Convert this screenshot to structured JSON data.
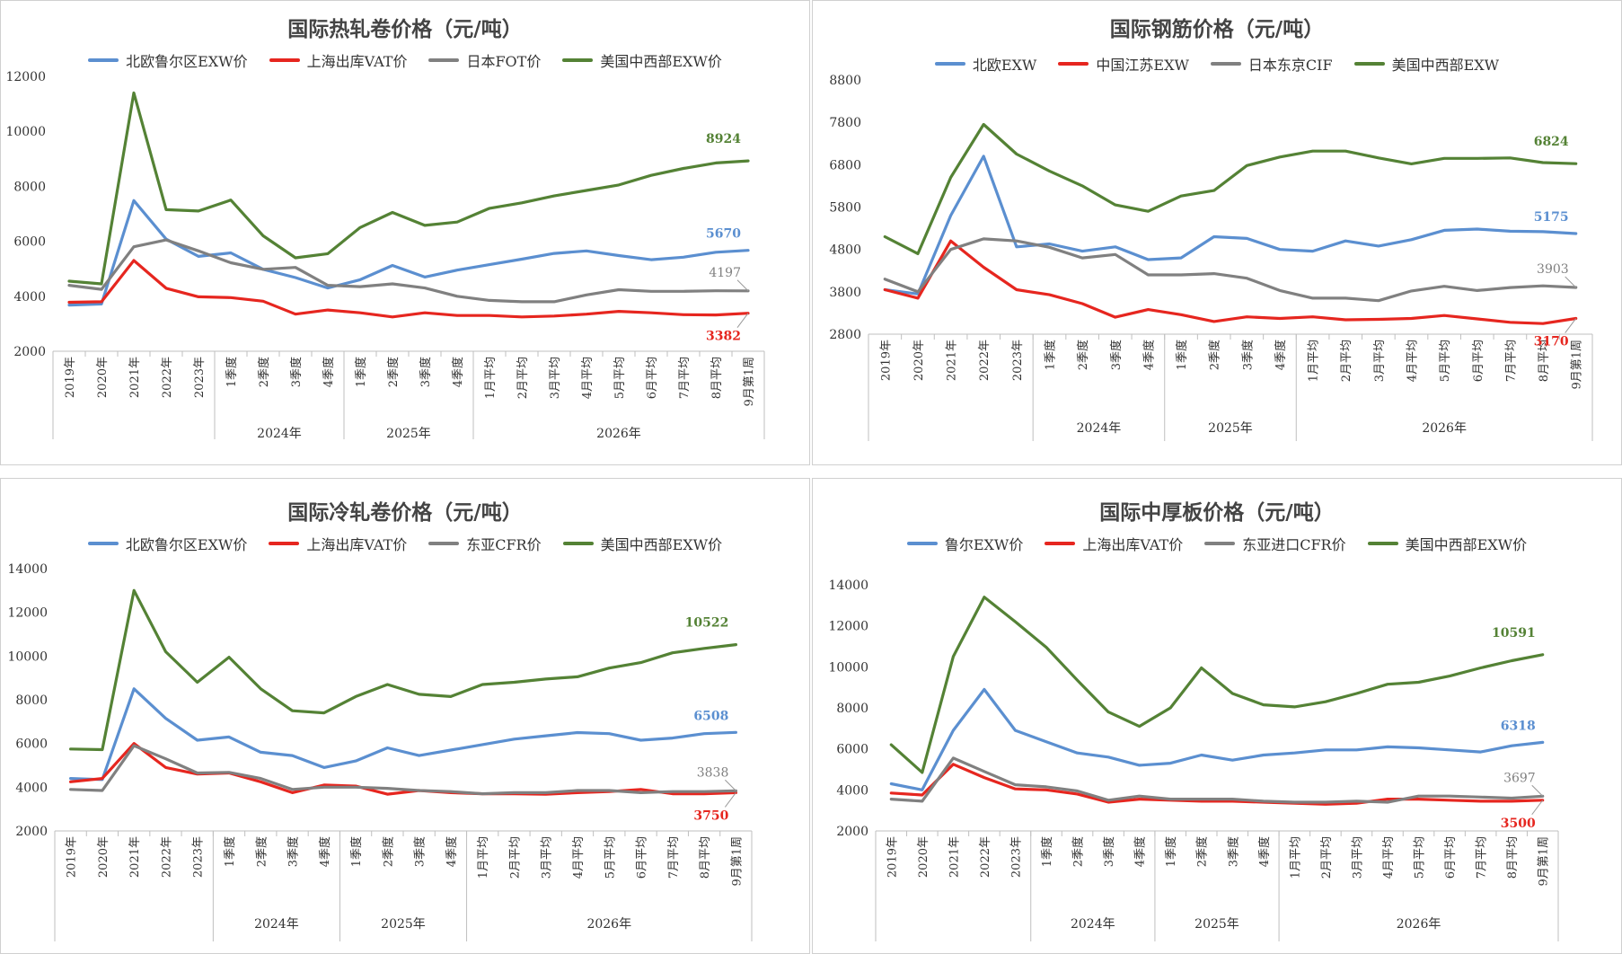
{
  "chart_data": [
    {
      "type": "line",
      "title": "国际热轧卷价格（元/吨）",
      "categories": [
        "2019年",
        "2020年",
        "2021年",
        "2022年",
        "2023年",
        "1季度",
        "2季度",
        "3季度",
        "4季度",
        "1季度",
        "2季度",
        "3季度",
        "4季度",
        "1月平均",
        "2月平均",
        "3月平均",
        "4月平均",
        "5月平均",
        "6月平均",
        "7月平均",
        "8月平均",
        "9月第1周"
      ],
      "groups": [
        {
          "label": "2024年",
          "span": [
            5,
            8
          ]
        },
        {
          "label": "2025年",
          "span": [
            9,
            12
          ]
        },
        {
          "label": "2026年",
          "span": [
            13,
            21
          ]
        }
      ],
      "ylim": [
        2000,
        12000
      ],
      "yticks": [
        2000,
        4000,
        6000,
        8000,
        10000,
        12000
      ],
      "series": [
        {
          "name": "北欧鲁尔区EXW价",
          "color": "#5b8fd0",
          "values": [
            3680,
            3720,
            7480,
            6080,
            5450,
            5580,
            4980,
            4680,
            4300,
            4600,
            5120,
            4700,
            4950,
            5150,
            5350,
            5560,
            5650,
            5480,
            5330,
            5420,
            5600,
            5670
          ],
          "end_label": "5670"
        },
        {
          "name": "上海出库VAT价",
          "color": "#e6261f",
          "values": [
            3780,
            3800,
            5300,
            4290,
            3980,
            3950,
            3820,
            3350,
            3500,
            3400,
            3250,
            3400,
            3300,
            3300,
            3250,
            3280,
            3350,
            3450,
            3400,
            3330,
            3320,
            3382
          ],
          "end_label": "3382"
        },
        {
          "name": "日本FOT价",
          "color": "#808080",
          "values": [
            4400,
            4250,
            5800,
            6050,
            5650,
            5220,
            4980,
            5050,
            4400,
            4350,
            4450,
            4300,
            4000,
            3850,
            3800,
            3800,
            4050,
            4240,
            4180,
            4180,
            4200,
            4197
          ],
          "end_label": "4197"
        },
        {
          "name": "美国中西部EXW价",
          "color": "#548235",
          "values": [
            4550,
            4450,
            11400,
            7150,
            7100,
            7500,
            6200,
            5400,
            5550,
            6500,
            7050,
            6580,
            6700,
            7200,
            7400,
            7650,
            7850,
            8050,
            8400,
            8650,
            8850,
            8924
          ],
          "end_label": "8924"
        }
      ]
    },
    {
      "type": "line",
      "title": "国际钢筋价格（元/吨）",
      "categories": [
        "2019年",
        "2020年",
        "2021年",
        "2022年",
        "2023年",
        "1季度",
        "2季度",
        "3季度",
        "4季度",
        "1季度",
        "2季度",
        "3季度",
        "4季度",
        "1月平均",
        "2月平均",
        "3月平均",
        "4月平均",
        "5月平均",
        "6月平均",
        "7月平均",
        "8月平均",
        "9月第1周"
      ],
      "groups": [
        {
          "label": "2024年",
          "span": [
            5,
            8
          ]
        },
        {
          "label": "2025年",
          "span": [
            9,
            12
          ]
        },
        {
          "label": "2026年",
          "span": [
            13,
            21
          ]
        }
      ],
      "ylim": [
        2800,
        8800
      ],
      "yticks": [
        2800,
        3800,
        4800,
        5800,
        6800,
        7800,
        8800
      ],
      "series": [
        {
          "name": "北欧EXW",
          "color": "#5b8fd0",
          "values": [
            3850,
            3750,
            5600,
            7000,
            4860,
            4930,
            4760,
            4860,
            4560,
            4600,
            5100,
            5060,
            4800,
            4760,
            5000,
            4880,
            5030,
            5250,
            5280,
            5230,
            5220,
            5175
          ],
          "end_label": "5175"
        },
        {
          "name": "中国江苏EXW",
          "color": "#e6261f",
          "values": [
            3850,
            3650,
            5000,
            4380,
            3850,
            3730,
            3520,
            3200,
            3380,
            3260,
            3100,
            3210,
            3170,
            3210,
            3140,
            3150,
            3170,
            3240,
            3160,
            3080,
            3050,
            3170
          ],
          "end_label": "3170"
        },
        {
          "name": "日本东京CIF",
          "color": "#808080",
          "values": [
            4100,
            3800,
            4800,
            5050,
            5000,
            4850,
            4600,
            4680,
            4200,
            4200,
            4230,
            4120,
            3830,
            3650,
            3650,
            3590,
            3820,
            3930,
            3830,
            3900,
            3940,
            3903
          ],
          "end_label": "3903"
        },
        {
          "name": "美国中西部EXW",
          "color": "#548235",
          "values": [
            5100,
            4700,
            6500,
            7750,
            7050,
            6650,
            6300,
            5850,
            5700,
            6060,
            6190,
            6780,
            6980,
            7120,
            7120,
            6960,
            6820,
            6950,
            6950,
            6960,
            6850,
            6824
          ],
          "end_label": "6824"
        }
      ]
    },
    {
      "type": "line",
      "title": "国际冷轧卷价格（元/吨）",
      "categories": [
        "2019年",
        "2020年",
        "2021年",
        "2022年",
        "2023年",
        "1季度",
        "2季度",
        "3季度",
        "4季度",
        "1季度",
        "2季度",
        "3季度",
        "4季度",
        "1月平均",
        "2月平均",
        "3月平均",
        "4月平均",
        "5月平均",
        "6月平均",
        "7月平均",
        "8月平均",
        "9月第1周"
      ],
      "groups": [
        {
          "label": "2024年",
          "span": [
            5,
            8
          ]
        },
        {
          "label": "2025年",
          "span": [
            9,
            12
          ]
        },
        {
          "label": "2026年",
          "span": [
            13,
            21
          ]
        }
      ],
      "ylim": [
        2000,
        14000
      ],
      "yticks": [
        2000,
        4000,
        6000,
        8000,
        10000,
        12000,
        14000
      ],
      "series": [
        {
          "name": "北欧鲁尔区EXW价",
          "color": "#5b8fd0",
          "values": [
            4400,
            4350,
            8500,
            7150,
            6150,
            6300,
            5600,
            5450,
            4900,
            5200,
            5800,
            5450,
            5700,
            5950,
            6200,
            6350,
            6500,
            6450,
            6150,
            6250,
            6450,
            6508
          ],
          "end_label": "6508"
        },
        {
          "name": "上海出库VAT价",
          "color": "#e6261f",
          "values": [
            4250,
            4400,
            6000,
            4900,
            4600,
            4650,
            4250,
            3750,
            4100,
            4050,
            3680,
            3850,
            3750,
            3700,
            3700,
            3680,
            3750,
            3800,
            3900,
            3700,
            3700,
            3750
          ],
          "end_label": "3750"
        },
        {
          "name": "东亚CFR价",
          "color": "#808080",
          "values": [
            3900,
            3850,
            5900,
            5300,
            4650,
            4680,
            4400,
            3900,
            4000,
            4000,
            3950,
            3850,
            3800,
            3700,
            3750,
            3750,
            3850,
            3850,
            3750,
            3800,
            3800,
            3838
          ],
          "end_label": "3838"
        },
        {
          "name": "美国中西部EXW价",
          "color": "#548235",
          "values": [
            5750,
            5720,
            13000,
            10200,
            8800,
            9950,
            8500,
            7500,
            7400,
            8150,
            8700,
            8250,
            8150,
            8700,
            8800,
            8950,
            9050,
            9450,
            9700,
            10150,
            10350,
            10522
          ],
          "end_label": "10522"
        }
      ]
    },
    {
      "type": "line",
      "title": "国际中厚板价格（元/吨）",
      "categories": [
        "2019年",
        "2020年",
        "2021年",
        "2022年",
        "2023年",
        "1季度",
        "2季度",
        "3季度",
        "4季度",
        "1季度",
        "2季度",
        "3季度",
        "4季度",
        "1月平均",
        "2月平均",
        "3月平均",
        "4月平均",
        "5月平均",
        "6月平均",
        "7月平均",
        "8月平均",
        "9月第1周"
      ],
      "groups": [
        {
          "label": "2024年",
          "span": [
            5,
            8
          ]
        },
        {
          "label": "2025年",
          "span": [
            9,
            12
          ]
        },
        {
          "label": "2026年",
          "span": [
            13,
            21
          ]
        }
      ],
      "ylim": [
        2000,
        14000
      ],
      "yticks": [
        2000,
        4000,
        6000,
        8000,
        10000,
        12000,
        14000
      ],
      "series": [
        {
          "name": "鲁尔EXW价",
          "color": "#5b8fd0",
          "values": [
            4300,
            4000,
            6900,
            8900,
            6900,
            6350,
            5800,
            5600,
            5200,
            5300,
            5700,
            5450,
            5700,
            5800,
            5950,
            5950,
            6100,
            6050,
            5950,
            5850,
            6150,
            6318
          ],
          "end_label": "6318"
        },
        {
          "name": "上海出库VAT价",
          "color": "#e6261f",
          "values": [
            3850,
            3750,
            5250,
            4600,
            4050,
            4000,
            3800,
            3400,
            3550,
            3500,
            3450,
            3450,
            3400,
            3350,
            3300,
            3350,
            3550,
            3550,
            3500,
            3450,
            3450,
            3500
          ],
          "end_label": "3500"
        },
        {
          "name": "东亚进口CFR价",
          "color": "#808080",
          "values": [
            3550,
            3450,
            5550,
            4900,
            4250,
            4150,
            3950,
            3500,
            3700,
            3550,
            3550,
            3550,
            3450,
            3400,
            3400,
            3450,
            3400,
            3700,
            3700,
            3650,
            3600,
            3697
          ],
          "end_label": "3697"
        },
        {
          "name": "美国中西部EXW价",
          "color": "#548235",
          "values": [
            6200,
            4850,
            10500,
            13400,
            12200,
            10950,
            9350,
            7800,
            7100,
            8000,
            9950,
            8700,
            8150,
            8050,
            8300,
            8700,
            9150,
            9250,
            9550,
            9950,
            10300,
            10591
          ],
          "end_label": "10591"
        }
      ]
    }
  ]
}
